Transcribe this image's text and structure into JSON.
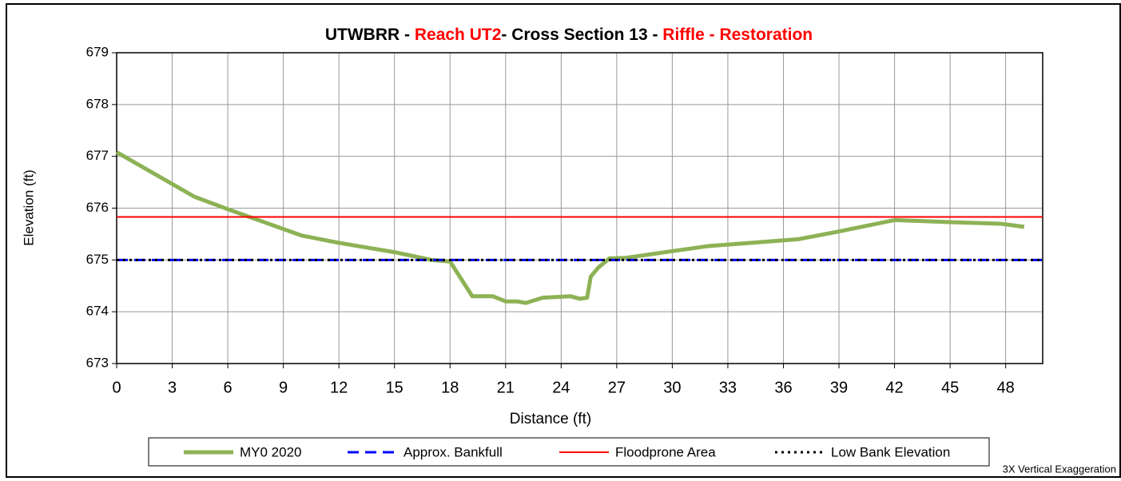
{
  "chart_data": {
    "type": "line",
    "title_parts": [
      {
        "text": "UTWBRR - ",
        "color": "#000000"
      },
      {
        "text": "Reach UT2",
        "color": "#ff0000"
      },
      {
        "text": "- Cross Section 13 - ",
        "color": "#000000"
      },
      {
        "text": "Riffle - Restoration",
        "color": "#ff0000"
      }
    ],
    "x_label": "Distance (ft)",
    "y_label": "Elevation (ft)",
    "note": "3X Vertical Exaggeration",
    "xlim": [
      0,
      50
    ],
    "xticks": [
      0,
      3,
      6,
      9,
      12,
      15,
      18,
      21,
      24,
      27,
      30,
      33,
      36,
      39,
      42,
      45,
      48
    ],
    "ylim": [
      673,
      679
    ],
    "yticks": [
      673,
      674,
      675,
      676,
      677,
      678,
      679
    ],
    "grid": true,
    "legend": "bottom",
    "series": [
      {
        "name": "MY0 2020",
        "color": "#8db255",
        "style": "solid",
        "width": 5,
        "x": [
          0,
          4.2,
          6,
          10,
          12,
          15,
          17,
          18,
          19.2,
          20.3,
          21,
          21.6,
          22.1,
          23,
          24.5,
          25,
          25.4,
          25.6,
          26,
          26.6,
          27.5,
          30,
          32,
          35,
          36.8,
          39,
          42,
          45,
          47.7,
          49
        ],
        "values": [
          677.08,
          676.22,
          675.98,
          675.47,
          675.33,
          675.15,
          675.0,
          674.97,
          674.3,
          674.3,
          674.2,
          674.2,
          674.17,
          674.27,
          674.3,
          674.25,
          674.27,
          674.68,
          674.85,
          675.03,
          675.04,
          675.17,
          675.27,
          675.35,
          675.4,
          675.55,
          675.77,
          675.73,
          675.7,
          675.64
        ]
      },
      {
        "name": "Approx. Bankfull",
        "color": "#0000ff",
        "style": "dashed",
        "width": 3,
        "x": [
          0,
          50
        ],
        "values": [
          675,
          675
        ]
      },
      {
        "name": "Floodprone Area",
        "color": "#ff0000",
        "style": "solid",
        "width": 2,
        "x": [
          0,
          50
        ],
        "values": [
          675.83,
          675.83
        ]
      },
      {
        "name": "Low Bank Elevation",
        "color": "#000000",
        "style": "dotted",
        "width": 3,
        "x": [
          0,
          50
        ],
        "values": [
          675,
          675
        ]
      }
    ]
  }
}
